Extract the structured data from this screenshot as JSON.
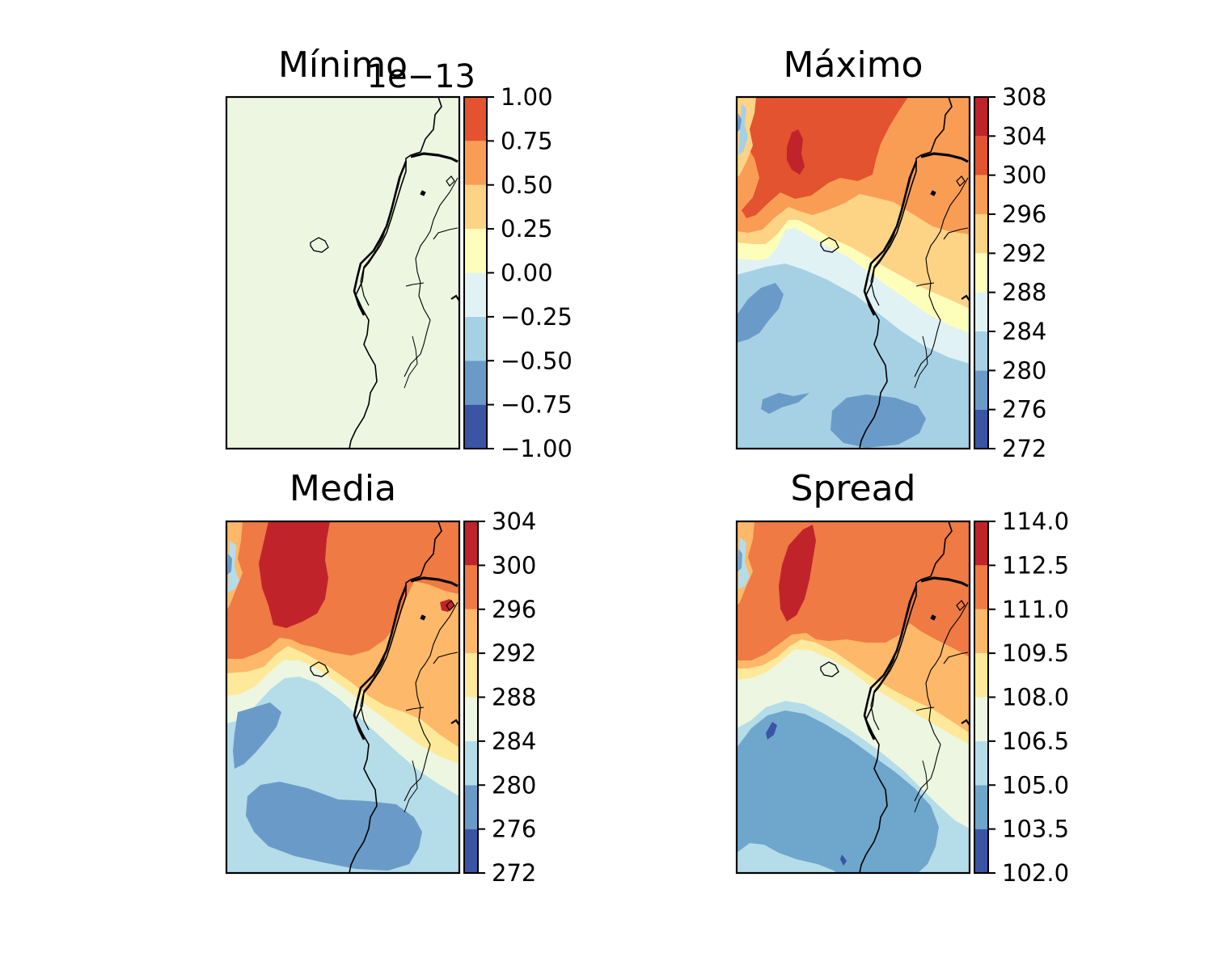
{
  "palette": [
    "#3a55a4",
    "#6a9bc8",
    "#a6d1e5",
    "#e1f2f4",
    "#fefebb",
    "#fdd386",
    "#f99d55",
    "#e3532f",
    "#c0242a"
  ],
  "coast_color": "#000000",
  "chart_data": [
    {
      "type": "heatmap",
      "title": "Mínimo",
      "colorbar": {
        "levels": [
          -1.0,
          -0.75,
          -0.5,
          -0.25,
          0.0,
          0.25,
          0.5,
          0.75,
          1.0
        ],
        "tick_labels": [
          "−1.00",
          "−0.75",
          "−0.50",
          "−0.25",
          "0.00",
          "0.25",
          "0.50",
          "0.75",
          "1.00"
        ],
        "offset_text": "1e−13",
        "colors": [
          "#3a55a4",
          "#6a9bc8",
          "#a6d1e5",
          "#e1f2f4",
          "#fefebb",
          "#fdd386",
          "#f99d55",
          "#e3532f"
        ]
      },
      "field_note": "uniform field at 0.00 (single fill color)",
      "fill_color": "#edf6e1"
    },
    {
      "type": "heatmap",
      "title": "Máximo",
      "colorbar": {
        "levels": [
          272,
          276,
          280,
          284,
          288,
          292,
          296,
          300,
          304,
          308
        ],
        "tick_labels": [
          "272",
          "276",
          "280",
          "284",
          "288",
          "292",
          "296",
          "300",
          "304",
          "308"
        ],
        "colors": [
          "#3a55a4",
          "#6a9bc8",
          "#a6d1e5",
          "#e1f2f4",
          "#fefebb",
          "#fdd386",
          "#f99d55",
          "#e3532f",
          "#c0242a"
        ]
      }
    },
    {
      "type": "heatmap",
      "title": "Media",
      "colorbar": {
        "levels": [
          272,
          276,
          280,
          284,
          288,
          292,
          296,
          300,
          304
        ],
        "tick_labels": [
          "272",
          "276",
          "280",
          "284",
          "288",
          "292",
          "296",
          "300",
          "304"
        ],
        "colors": [
          "#3a55a4",
          "#6a9bc8",
          "#b4dde9",
          "#edf6e1",
          "#fee99a",
          "#fdb869",
          "#ef7a44",
          "#c0242a"
        ]
      }
    },
    {
      "type": "heatmap",
      "title": "Spread",
      "colorbar": {
        "levels": [
          102.0,
          103.5,
          105.0,
          106.5,
          108.0,
          109.5,
          111.0,
          112.5,
          114.0
        ],
        "tick_labels": [
          "102.0",
          "103.5",
          "105.0",
          "106.5",
          "108.0",
          "109.5",
          "111.0",
          "112.5",
          "114.0"
        ],
        "colors": [
          "#3a55a4",
          "#6fa6cc",
          "#b4dde9",
          "#edf6e1",
          "#fee99a",
          "#fdb869",
          "#ef7a44",
          "#c0242a"
        ]
      }
    }
  ]
}
